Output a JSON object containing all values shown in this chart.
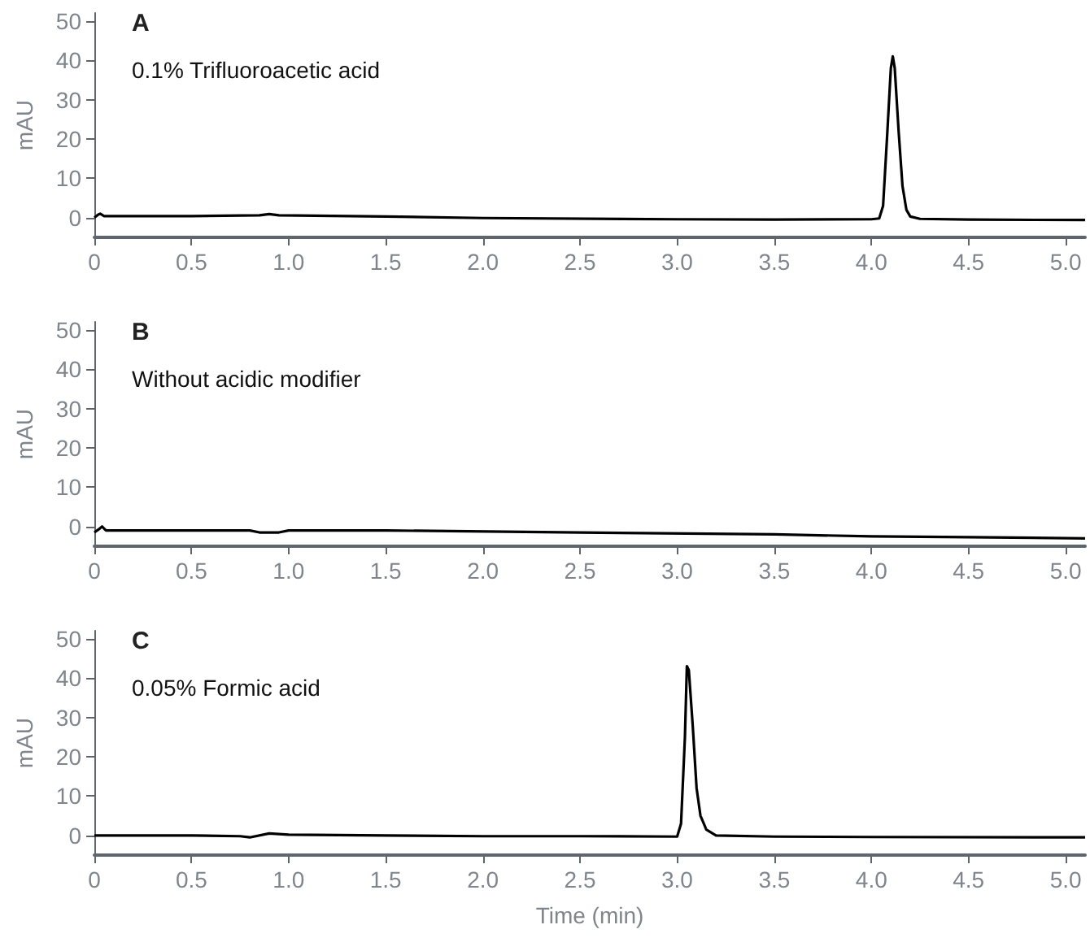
{
  "chart_data": [
    {
      "type": "line",
      "title": "A",
      "subtitle": "0.1% Trifluoroacetic acid",
      "ylabel": "mAU",
      "marker": "none",
      "line_style": "solid",
      "xlim": [
        0,
        5.1
      ],
      "ylim": [
        -5,
        52
      ],
      "yticks": [
        0,
        10,
        20,
        30,
        40,
        50
      ],
      "xticks": [
        0,
        0.5,
        {
          "value": 1,
          "label": "1.0"
        },
        1.5,
        {
          "value": 2,
          "label": "2.0"
        },
        2.5,
        {
          "value": 3,
          "label": "3.0"
        },
        3.5,
        {
          "value": 4,
          "label": "4.0"
        },
        4.5,
        {
          "value": 5,
          "label": "5.0"
        }
      ],
      "series": [
        {
          "color": "#000000",
          "x": [
            0,
            0.02,
            0.03,
            0.05,
            0.5,
            0.85,
            0.9,
            0.95,
            1.5,
            2.0,
            3.0,
            3.5,
            4.0,
            4.04,
            4.06,
            4.08,
            4.1,
            4.11,
            4.12,
            4.14,
            4.16,
            4.18,
            4.2,
            4.25,
            4.5,
            5.1
          ],
          "values": [
            0,
            0.8,
            1,
            0.4,
            0.4,
            0.6,
            0.9,
            0.6,
            0.3,
            -0.1,
            -0.4,
            -0.5,
            -0.4,
            -0.2,
            3,
            20,
            38,
            41,
            38,
            22,
            8,
            2,
            0.3,
            -0.3,
            -0.5,
            -0.6
          ]
        }
      ]
    },
    {
      "type": "line",
      "title": "B",
      "subtitle": "Without acidic modifier",
      "ylabel": "mAU",
      "marker": "none",
      "line_style": "solid",
      "xlim": [
        0,
        5.1
      ],
      "ylim": [
        -5,
        52
      ],
      "yticks": [
        0,
        10,
        20,
        30,
        40,
        50
      ],
      "xticks": [
        0,
        0.5,
        {
          "value": 1,
          "label": "1.0"
        },
        1.5,
        {
          "value": 2,
          "label": "2.0"
        },
        2.5,
        {
          "value": 3,
          "label": "3.0"
        },
        3.5,
        {
          "value": 4,
          "label": "4.0"
        },
        4.5,
        {
          "value": 5,
          "label": "5.0"
        }
      ],
      "series": [
        {
          "color": "#000000",
          "x": [
            0,
            0.02,
            0.04,
            0.06,
            0.5,
            0.8,
            0.85,
            0.95,
            1.0,
            1.5,
            2.5,
            3.5,
            4.0,
            4.5,
            5.1
          ],
          "values": [
            -1.5,
            -0.8,
            0,
            -1,
            -1,
            -1,
            -1.5,
            -1.5,
            -1,
            -1,
            -1.5,
            -2,
            -2.5,
            -2.7,
            -3
          ]
        }
      ]
    },
    {
      "type": "line",
      "title": "C",
      "subtitle": "0.05% Formic acid",
      "xlabel": "Time (min)",
      "ylabel": "mAU",
      "marker": "none",
      "line_style": "solid",
      "xlim": [
        0,
        5.1
      ],
      "ylim": [
        -5,
        52
      ],
      "yticks": [
        0,
        10,
        20,
        30,
        40,
        50
      ],
      "xticks": [
        0,
        0.5,
        {
          "value": 1,
          "label": "1.0"
        },
        1.5,
        {
          "value": 2,
          "label": "2.0"
        },
        2.5,
        {
          "value": 3,
          "label": "3.0"
        },
        3.5,
        {
          "value": 4,
          "label": "4.0"
        },
        4.5,
        {
          "value": 5,
          "label": "5.0"
        }
      ],
      "series": [
        {
          "color": "#000000",
          "x": [
            0,
            0.5,
            0.75,
            0.8,
            0.9,
            1.0,
            1.5,
            2.0,
            2.5,
            3.0,
            3.02,
            3.04,
            3.05,
            3.06,
            3.08,
            3.1,
            3.12,
            3.15,
            3.2,
            3.5,
            4.0,
            5.1
          ],
          "values": [
            0,
            0,
            -0.2,
            -0.5,
            0.5,
            0.2,
            0,
            -0.2,
            -0.2,
            -0.3,
            3,
            25,
            43,
            42,
            28,
            12,
            5,
            1.5,
            0,
            -0.3,
            -0.4,
            -0.5
          ]
        }
      ]
    }
  ]
}
